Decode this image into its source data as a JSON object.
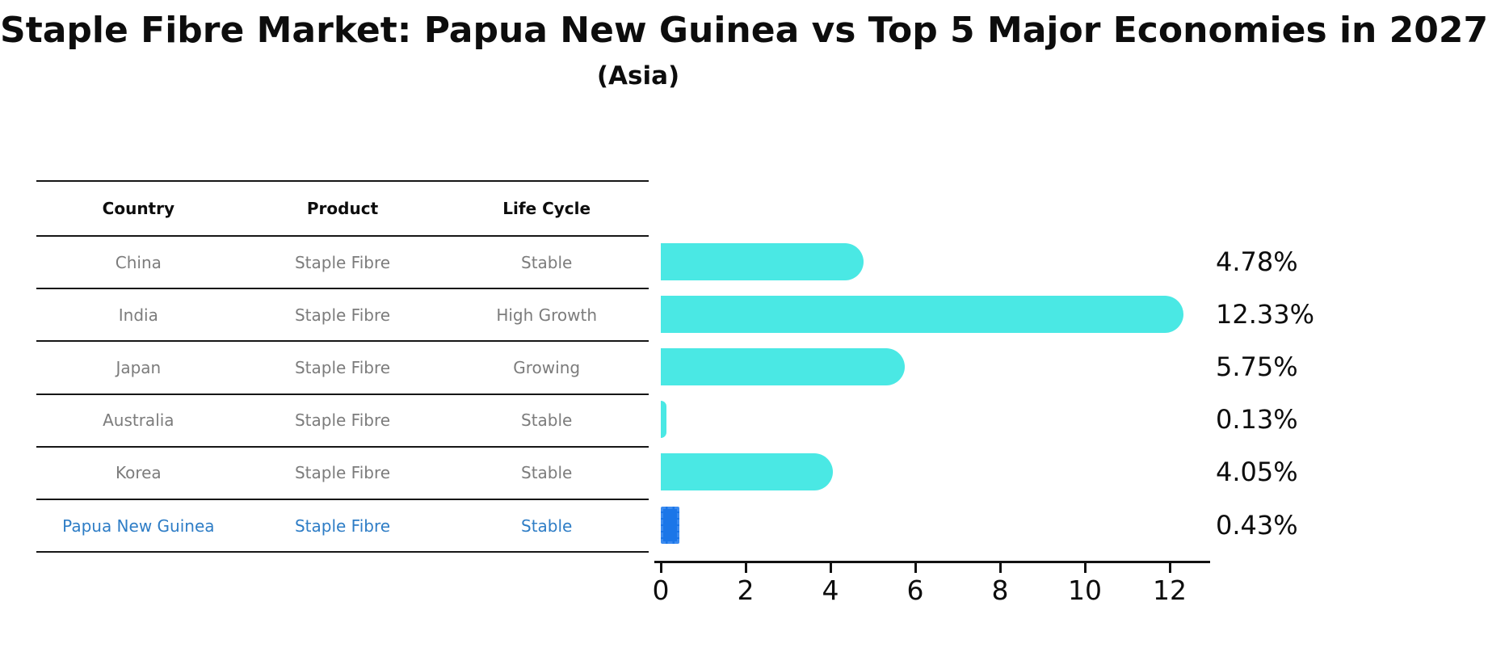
{
  "title": "Staple Fibre Market: Papua New Guinea vs Top 5 Major Economies in 2027",
  "subtitle": "(Asia)",
  "table": {
    "headers": [
      "Country",
      "Product",
      "Life Cycle"
    ],
    "rows": [
      {
        "cells": [
          "China",
          "Staple Fibre",
          "Stable"
        ],
        "highlight": false
      },
      {
        "cells": [
          "India",
          "Staple Fibre",
          "High Growth"
        ],
        "highlight": false
      },
      {
        "cells": [
          "Japan",
          "Staple Fibre",
          "Growing"
        ],
        "highlight": false
      },
      {
        "cells": [
          "Australia",
          "Staple Fibre",
          "Stable"
        ],
        "highlight": false
      },
      {
        "cells": [
          "Korea",
          "Staple Fibre",
          "Stable"
        ],
        "highlight": false
      },
      {
        "cells": [
          "Papua New Guinea",
          "Staple Fibre",
          "Stable"
        ],
        "highlight": true
      }
    ]
  },
  "chart_data": {
    "type": "bar",
    "orientation": "horizontal",
    "title": "Staple Fibre Market: Papua New Guinea vs Top 5 Major Economies in 2027",
    "subtitle": "(Asia)",
    "categories": [
      "China",
      "India",
      "Japan",
      "Australia",
      "Korea",
      "Papua New Guinea"
    ],
    "values": [
      4.78,
      12.33,
      5.75,
      0.13,
      4.05,
      0.43
    ],
    "value_labels": [
      "4.78%",
      "12.33%",
      "5.75%",
      "0.13%",
      "4.05%",
      "0.43%"
    ],
    "xlim": [
      0,
      13
    ],
    "xticks": [
      0,
      2,
      4,
      6,
      8,
      10,
      12
    ],
    "grid": false,
    "legend": "none",
    "highlight_index": 5,
    "bar_color": "#4ae8e4",
    "highlight_bar_color": "#1b76e8",
    "highlight_text_color": "#2e7dc6",
    "text_color": "#0d0d0d",
    "row_text_color": "#7c7c7c"
  }
}
